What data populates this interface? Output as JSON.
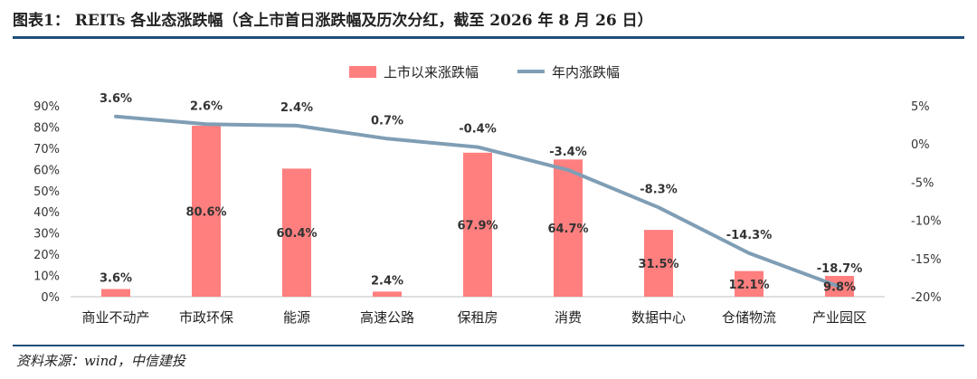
{
  "title": "图表1：  REITs 各业态涨跌幅（含上市首日涨跌幅及历次分红，截至 2026 年 8 月 26 日）",
  "source": "资料来源：wind，中信建投",
  "colors": {
    "bar": "#FF7F7F",
    "line": "#7F9EB5",
    "rule": "#1F4E79"
  },
  "chart_data": {
    "type": "bar",
    "categories": [
      "商业不动产",
      "市政环保",
      "能源",
      "高速公路",
      "保租房",
      "消费",
      "数据中心",
      "仓储物流",
      "产业园区"
    ],
    "series": [
      {
        "name": "上市以来涨跌幅",
        "type": "bar",
        "axis": "left",
        "values": [
          3.6,
          80.6,
          60.4,
          2.4,
          67.9,
          64.7,
          31.5,
          12.1,
          9.8
        ],
        "labels": [
          "3.6%",
          "80.6%",
          "60.4%",
          "2.4%",
          "67.9%",
          "64.7%",
          "31.5%",
          "12.1%",
          "9.8%"
        ]
      },
      {
        "name": "年内涨跌幅",
        "type": "line",
        "axis": "right",
        "values": [
          3.6,
          2.6,
          2.4,
          0.7,
          -0.4,
          -3.4,
          -8.3,
          -14.3,
          -18.7
        ],
        "labels": [
          "3.6%",
          "2.6%",
          "2.4%",
          "0.7%",
          "-0.4%",
          "-3.4%",
          "-8.3%",
          "-14.3%",
          "-18.7%"
        ]
      }
    ],
    "y_left": {
      "min": 0,
      "max": 90,
      "ticks": [
        "0%",
        "10%",
        "20%",
        "30%",
        "40%",
        "50%",
        "60%",
        "70%",
        "80%",
        "90%"
      ]
    },
    "y_right": {
      "min": -20,
      "max": 5,
      "ticks": [
        "5%",
        "0%",
        "-5%",
        "-10%",
        "-15%",
        "-20%"
      ]
    },
    "legend_position": "top-center",
    "grid": false
  }
}
